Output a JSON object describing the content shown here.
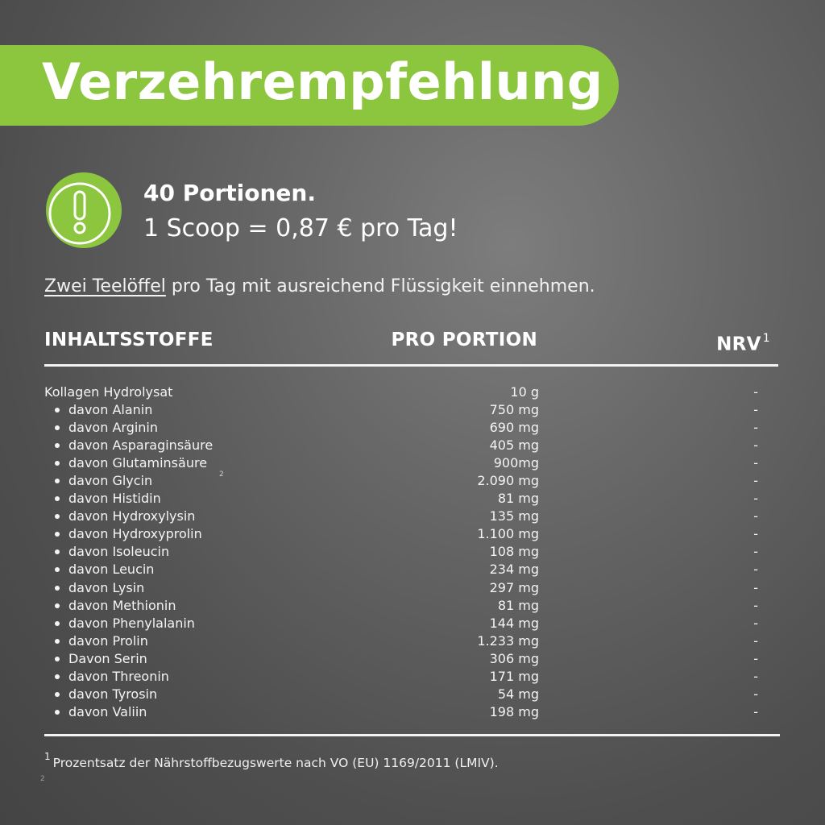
{
  "banner": {
    "title": "Verzehrempfehlung",
    "color": "#8cc63f"
  },
  "alert": {
    "icon": "exclamation-icon",
    "portions": "40 Portionen.",
    "price": "1 Scoop = 0,87 € pro Tag!"
  },
  "dosage": {
    "link": "Zwei Teelöffel",
    "text": " pro Tag mit ausreichend Flüssigkeit einnehmen."
  },
  "table": {
    "headers": {
      "ingredients": "INHALTSSTOFFE",
      "per_portion": "PRO PORTION",
      "nrv": "NRV",
      "nrv_note": "1"
    },
    "rows": [
      {
        "name": "Kollagen Hydrolysat",
        "amount": "10 g",
        "nrv": "-",
        "sub": false
      },
      {
        "name": "davon Alanin",
        "amount": "750 mg",
        "nrv": "-",
        "sub": true
      },
      {
        "name": "davon Arginin",
        "amount": "690 mg",
        "nrv": "-",
        "sub": true
      },
      {
        "name": "davon Asparaginsäure",
        "amount": "405 mg",
        "nrv": "-",
        "sub": true
      },
      {
        "name": "davon Glutaminsäure",
        "amount": "900mg",
        "nrv": "-",
        "sub": true
      },
      {
        "name": "davon Glycin",
        "amount": "2.090 mg",
        "nrv": "-",
        "sub": true
      },
      {
        "name": "davon Histidin",
        "amount": "81 mg",
        "nrv": "-",
        "sub": true
      },
      {
        "name": "davon Hydroxylysin",
        "amount": "135 mg",
        "nrv": "-",
        "sub": true
      },
      {
        "name": "davon Hydroxyprolin",
        "amount": "1.100 mg",
        "nrv": "-",
        "sub": true
      },
      {
        "name": "davon Isoleucin",
        "amount": "108 mg",
        "nrv": "-",
        "sub": true
      },
      {
        "name": "davon Leucin",
        "amount": "234 mg",
        "nrv": "-",
        "sub": true
      },
      {
        "name": "davon Lysin",
        "amount": "297 mg",
        "nrv": "-",
        "sub": true
      },
      {
        "name": "davon Methionin",
        "amount": "81 mg",
        "nrv": "-",
        "sub": true
      },
      {
        "name": "davon Phenylalanin",
        "amount": "144 mg",
        "nrv": "-",
        "sub": true
      },
      {
        "name": "davon Prolin",
        "amount": "1.233 mg",
        "nrv": "-",
        "sub": true
      },
      {
        "name": "Davon Serin",
        "amount": "306 mg",
        "nrv": "-",
        "sub": true
      },
      {
        "name": "davon Threonin",
        "amount": "171 mg",
        "nrv": "-",
        "sub": true
      },
      {
        "name": "davon Tyrosin",
        "amount": "54 mg",
        "nrv": "-",
        "sub": true
      },
      {
        "name": "davon Valiin",
        "amount": "198 mg",
        "nrv": "-",
        "sub": true
      }
    ],
    "stray_mark": "2"
  },
  "footnote": {
    "marker": "1",
    "text": "Prozentsatz der Nährstoffbezugswerte nach VO (EU) 1169/2011 (LMIV).",
    "second_marker": "2"
  }
}
